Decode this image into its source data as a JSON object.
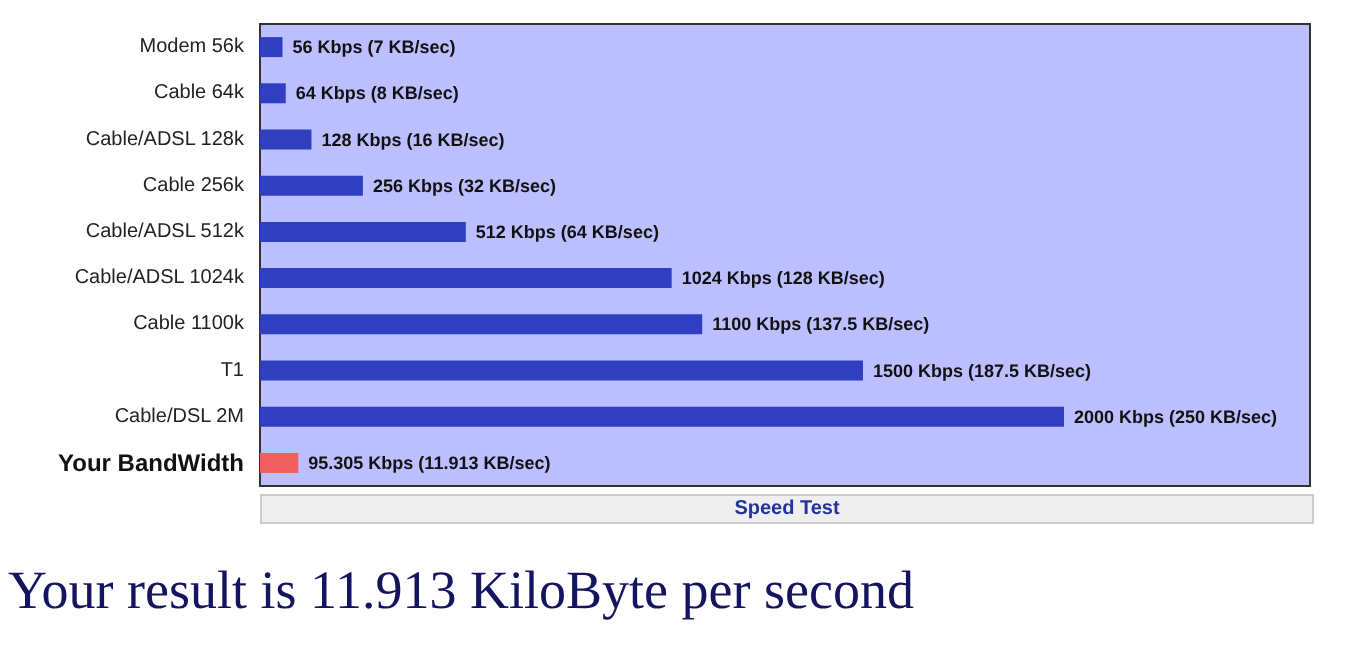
{
  "chart_data": {
    "type": "bar",
    "orientation": "horizontal",
    "categories": [
      "Modem 56k",
      "Cable 64k",
      "Cable/ADSL 128k",
      "Cable 256k",
      "Cable/ADSL 512k",
      "Cable/ADSL 1024k",
      "Cable 1100k",
      "T1",
      "Cable/DSL 2M",
      "Your BandWidth"
    ],
    "values": [
      56,
      64,
      128,
      256,
      512,
      1024,
      1100,
      1500,
      2000,
      95.305
    ],
    "colors": [
      "#2f3fc0",
      "#2f3fc0",
      "#2f3fc0",
      "#2f3fc0",
      "#2f3fc0",
      "#2f3fc0",
      "#2f3fc0",
      "#2f3fc0",
      "#2f3fc0",
      "#f06060"
    ],
    "value_labels": [
      "56 Kbps (7 KB/sec)",
      "64 Kbps (8 KB/sec)",
      "128 Kbps (16 KB/sec)",
      "256 Kbps (32 KB/sec)",
      "512 Kbps (64 KB/sec)",
      "1024 Kbps (128 KB/sec)",
      "1100 Kbps (137.5 KB/sec)",
      "1500 Kbps (187.5 KB/sec)",
      "2000 Kbps (250 KB/sec)",
      "95.305 Kbps (11.913 KB/sec)"
    ],
    "annotations": [
      "Speed Test",
      "Your result is 11.913 KiloByte per second"
    ]
  }
}
